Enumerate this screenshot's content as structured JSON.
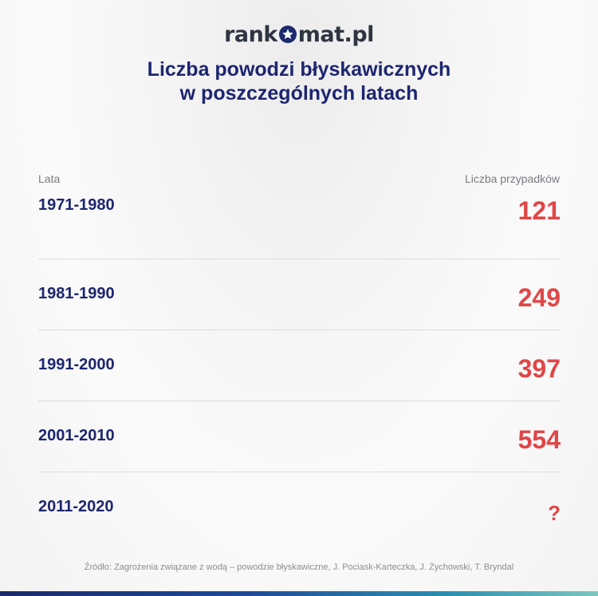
{
  "brand": {
    "part1": "rank",
    "part2": "mat.pl",
    "star_color": "#1d2a6e"
  },
  "title": {
    "line1": "Liczba powodzi błyskawicznych",
    "line2": "w poszczególnych latach"
  },
  "table": {
    "col_left": "Lata",
    "col_right": "Liczba przypadków",
    "rows": [
      {
        "years": "1971-1980",
        "count": "121"
      },
      {
        "years": "1981-1990",
        "count": "249"
      },
      {
        "years": "1991-2000",
        "count": "397"
      },
      {
        "years": "2001-2010",
        "count": "554"
      },
      {
        "years": "2011-2020",
        "count": "?"
      }
    ]
  },
  "source": "Źródło: Zagrożenia związane z wodą – powodzie błyskawiczne, J. Pociask-Karteczka, J. Żychowski, T. Bryndal",
  "colors": {
    "title": "#1d2670",
    "value": "#e04646"
  }
}
